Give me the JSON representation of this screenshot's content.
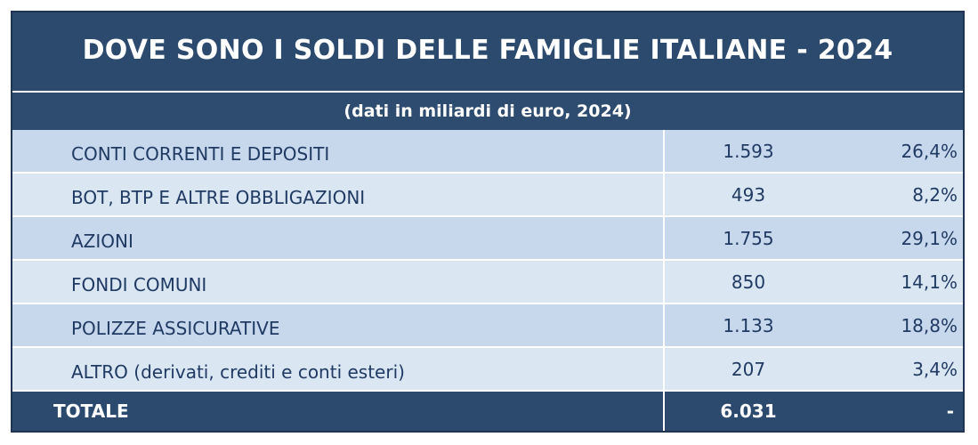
{
  "table": {
    "title": "DOVE SONO I SOLDI DELLE FAMIGLIE ITALIANE - 2024",
    "subtitle": "(dati in miliardi di euro, 2024)",
    "rows": [
      {
        "label": "CONTI CORRENTI E DEPOSITI",
        "value": "1.593",
        "pct": "26,4%"
      },
      {
        "label": "BOT, BTP E ALTRE OBBLIGAZIONI",
        "value": "493",
        "pct": "8,2%"
      },
      {
        "label": "AZIONI",
        "value": "1.755",
        "pct": "29,1%"
      },
      {
        "label": "FONDI COMUNI",
        "value": "850",
        "pct": "14,1%"
      },
      {
        "label": "POLIZZE ASSICURATIVE",
        "value": "1.133",
        "pct": "18,8%"
      },
      {
        "label": "ALTRO (derivati, crediti e conti esteri)",
        "value": "207",
        "pct": "3,4%"
      }
    ],
    "total": {
      "label": "TOTALE",
      "value": "6.031",
      "pct": "-"
    }
  },
  "colors": {
    "header_bg": "#2c4a6e",
    "row_odd": "#c7d8ec",
    "row_even": "#dbe6f3",
    "row_text": "#1f3a63"
  }
}
